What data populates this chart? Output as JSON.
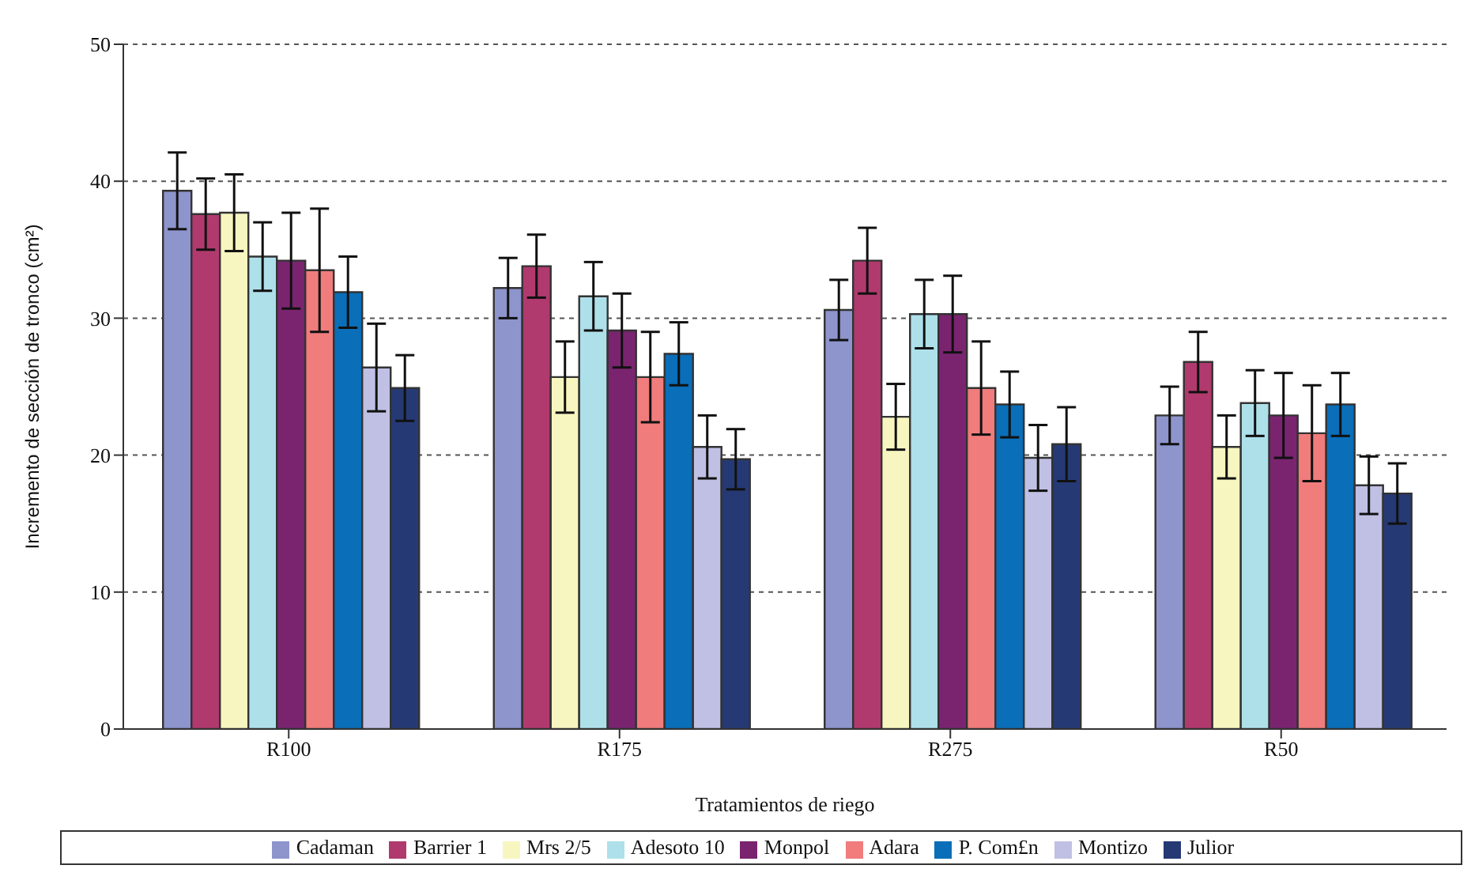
{
  "chart_data": {
    "type": "bar",
    "xlabel": "Tratamientos de riego",
    "ylabel": "Incremento de sección de tronco (cm²)",
    "categories": [
      "R100",
      "R175",
      "R275",
      "R50"
    ],
    "series": [
      {
        "name": "Cadaman",
        "color": "#8e94cc",
        "values": [
          39.3,
          32.2,
          30.6,
          22.9
        ],
        "errors": [
          2.8,
          2.2,
          2.2,
          2.1
        ]
      },
      {
        "name": "Barrier 1",
        "color": "#b03a6e",
        "values": [
          37.6,
          33.8,
          34.2,
          26.8
        ],
        "errors": [
          2.6,
          2.3,
          2.4,
          2.2
        ]
      },
      {
        "name": "Mrs 2/5",
        "color": "#f8f6c0",
        "values": [
          37.7,
          25.7,
          22.8,
          20.6
        ],
        "errors": [
          2.8,
          2.6,
          2.4,
          2.3
        ]
      },
      {
        "name": "Adesoto 10",
        "color": "#aee0ea",
        "values": [
          34.5,
          31.6,
          30.3,
          23.8
        ],
        "errors": [
          2.5,
          2.5,
          2.5,
          2.4
        ]
      },
      {
        "name": "Monpol",
        "color": "#7a2470",
        "values": [
          34.2,
          29.1,
          30.3,
          22.9
        ],
        "errors": [
          3.5,
          2.7,
          2.8,
          3.1
        ]
      },
      {
        "name": "Adara",
        "color": "#f07c7c",
        "values": [
          33.5,
          25.7,
          24.9,
          21.6
        ],
        "errors": [
          4.5,
          3.3,
          3.4,
          3.5
        ]
      },
      {
        "name": "P. Com£n",
        "color": "#0a6eb8",
        "values": [
          31.9,
          27.4,
          23.7,
          23.7
        ],
        "errors": [
          2.6,
          2.3,
          2.4,
          2.3
        ]
      },
      {
        "name": "Montizo",
        "color": "#c0c0e4",
        "values": [
          26.4,
          20.6,
          19.8,
          17.8
        ],
        "errors": [
          3.2,
          2.3,
          2.4,
          2.1
        ]
      },
      {
        "name": "Julior",
        "color": "#253a74",
        "values": [
          24.9,
          19.7,
          20.8,
          17.2
        ],
        "errors": [
          2.4,
          2.2,
          2.7,
          2.2
        ]
      }
    ],
    "ylim": [
      0,
      50
    ],
    "yticks": [
      0,
      10,
      20,
      30,
      40,
      50
    ],
    "grid": "y",
    "legend": "bottom"
  }
}
